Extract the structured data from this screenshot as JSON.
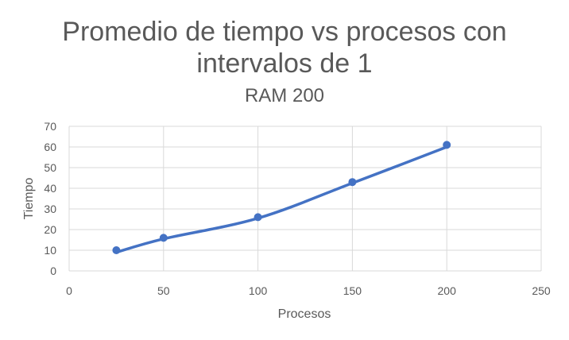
{
  "chart_data": {
    "type": "scatter",
    "title": "Promedio de tiempo vs procesos con intervalos de 1",
    "title_lines": [
      "Promedio de tiempo vs procesos con",
      "intervalos de 1"
    ],
    "subtitle": "RAM 200",
    "xlabel": "Procesos",
    "ylabel": "Tiempo",
    "xlim": [
      0,
      250
    ],
    "ylim": [
      0,
      70
    ],
    "xticks": [
      0,
      50,
      100,
      150,
      200,
      250
    ],
    "yticks": [
      0,
      10,
      20,
      30,
      40,
      50,
      60,
      70
    ],
    "grid": true,
    "series": [
      {
        "name": "Tiempo",
        "x": [
          25,
          50,
          100,
          150,
          200
        ],
        "y": [
          10,
          16,
          26,
          43,
          61
        ]
      }
    ],
    "trendline": {
      "type": "smooth",
      "x": [
        25,
        50,
        100,
        150,
        200
      ],
      "y": [
        9,
        15.5,
        25.5,
        42.5,
        60
      ]
    },
    "colors": {
      "series": "#4472C4",
      "grid": "#D9D9D9",
      "text": "#595959"
    }
  }
}
